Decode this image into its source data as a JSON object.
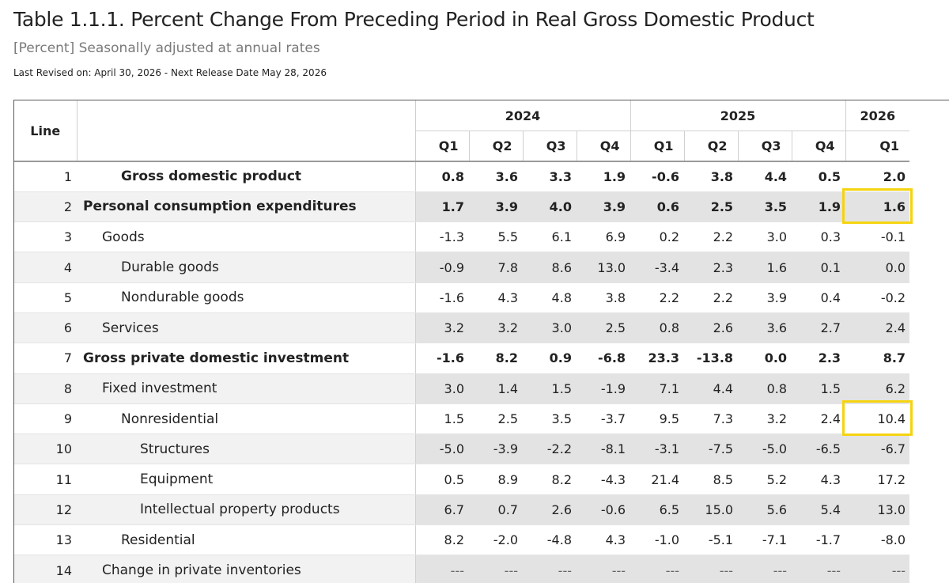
{
  "header": {
    "title": "Table 1.1.1. Percent Change From Preceding Period in Real Gross Domestic Product",
    "subtitle": "[Percent] Seasonally adjusted at annual rates",
    "revised": "Last Revised on: April 30, 2026 - Next Release Date May 28, 2026"
  },
  "table": {
    "line_header": "Line",
    "years": [
      {
        "label": "2024",
        "span": 4
      },
      {
        "label": "2025",
        "span": 4
      },
      {
        "label": "2026",
        "span": 1
      }
    ],
    "quarters": [
      "Q1",
      "Q2",
      "Q3",
      "Q4",
      "Q1",
      "Q2",
      "Q3",
      "Q4",
      "Q1"
    ],
    "rows": [
      {
        "line": "1",
        "label": "Gross domestic product",
        "indent": 2,
        "bold": true,
        "values": [
          "0.8",
          "3.6",
          "3.3",
          "1.9",
          "-0.6",
          "3.8",
          "4.4",
          "0.5",
          "2.0"
        ]
      },
      {
        "line": "2",
        "label": "Personal consumption expenditures",
        "indent": 0,
        "bold": true,
        "values": [
          "1.7",
          "3.9",
          "4.0",
          "3.9",
          "0.6",
          "2.5",
          "3.5",
          "1.9",
          "1.6"
        ]
      },
      {
        "line": "3",
        "label": "Goods",
        "indent": 1,
        "bold": false,
        "values": [
          "-1.3",
          "5.5",
          "6.1",
          "6.9",
          "0.2",
          "2.2",
          "3.0",
          "0.3",
          "-0.1"
        ]
      },
      {
        "line": "4",
        "label": "Durable goods",
        "indent": 2,
        "bold": false,
        "values": [
          "-0.9",
          "7.8",
          "8.6",
          "13.0",
          "-3.4",
          "2.3",
          "1.6",
          "0.1",
          "0.0"
        ]
      },
      {
        "line": "5",
        "label": "Nondurable goods",
        "indent": 2,
        "bold": false,
        "values": [
          "-1.6",
          "4.3",
          "4.8",
          "3.8",
          "2.2",
          "2.2",
          "3.9",
          "0.4",
          "-0.2"
        ]
      },
      {
        "line": "6",
        "label": "Services",
        "indent": 1,
        "bold": false,
        "values": [
          "3.2",
          "3.2",
          "3.0",
          "2.5",
          "0.8",
          "2.6",
          "3.6",
          "2.7",
          "2.4"
        ]
      },
      {
        "line": "7",
        "label": "Gross private domestic investment",
        "indent": 0,
        "bold": true,
        "values": [
          "-1.6",
          "8.2",
          "0.9",
          "-6.8",
          "23.3",
          "-13.8",
          "0.0",
          "2.3",
          "8.7"
        ]
      },
      {
        "line": "8",
        "label": "Fixed investment",
        "indent": 1,
        "bold": false,
        "values": [
          "3.0",
          "1.4",
          "1.5",
          "-1.9",
          "7.1",
          "4.4",
          "0.8",
          "1.5",
          "6.2"
        ]
      },
      {
        "line": "9",
        "label": "Nonresidential",
        "indent": 2,
        "bold": false,
        "values": [
          "1.5",
          "2.5",
          "3.5",
          "-3.7",
          "9.5",
          "7.3",
          "3.2",
          "2.4",
          "10.4"
        ]
      },
      {
        "line": "10",
        "label": "Structures",
        "indent": 3,
        "bold": false,
        "values": [
          "-5.0",
          "-3.9",
          "-2.2",
          "-8.1",
          "-3.1",
          "-7.5",
          "-5.0",
          "-6.5",
          "-6.7"
        ]
      },
      {
        "line": "11",
        "label": "Equipment",
        "indent": 3,
        "bold": false,
        "values": [
          "0.5",
          "8.9",
          "8.2",
          "-4.3",
          "21.4",
          "8.5",
          "5.2",
          "4.3",
          "17.2"
        ]
      },
      {
        "line": "12",
        "label": "Intellectual property products",
        "indent": 3,
        "bold": false,
        "values": [
          "6.7",
          "0.7",
          "2.6",
          "-0.6",
          "6.5",
          "15.0",
          "5.6",
          "5.4",
          "13.0"
        ]
      },
      {
        "line": "13",
        "label": "Residential",
        "indent": 2,
        "bold": false,
        "values": [
          "8.2",
          "-2.0",
          "-4.8",
          "4.3",
          "-1.0",
          "-5.1",
          "-7.1",
          "-1.7",
          "-8.0"
        ]
      },
      {
        "line": "14",
        "label": "Change in private inventories",
        "indent": 1,
        "bold": false,
        "values": [
          "---",
          "---",
          "---",
          "---",
          "---",
          "---",
          "---",
          "---",
          "---"
        ]
      }
    ],
    "highlights": [
      {
        "row": 1,
        "col": 8,
        "color": "#f5d40f"
      },
      {
        "row": 8,
        "col": 8,
        "color": "#f5d40f"
      }
    ]
  }
}
